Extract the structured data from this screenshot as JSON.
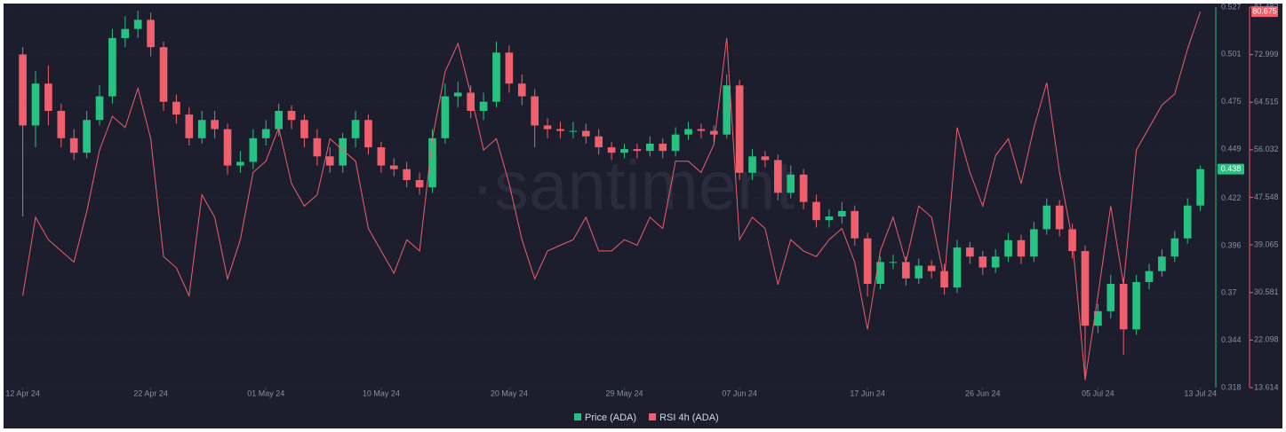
{
  "chart_data": {
    "type": "candlestick",
    "watermark": "·santiment",
    "x": [
      0,
      1,
      2,
      3,
      4,
      5,
      6,
      7,
      8,
      9,
      10,
      11,
      12,
      13,
      14,
      15,
      16,
      17,
      18,
      19,
      20,
      21,
      22,
      23,
      24,
      25,
      26,
      27,
      28,
      29,
      30,
      31,
      32,
      33,
      34,
      35,
      36,
      37,
      38,
      39,
      40,
      41,
      42,
      43,
      44,
      45,
      46,
      47,
      48,
      49,
      50,
      51,
      52,
      53,
      54,
      55,
      56,
      57,
      58,
      59,
      60,
      61,
      62,
      63,
      64,
      65,
      66,
      67,
      68,
      69,
      70,
      71,
      72,
      73,
      74,
      75,
      76,
      77,
      78,
      79,
      80,
      81,
      82,
      83,
      84,
      85,
      86,
      87,
      88,
      89,
      90,
      91,
      92
    ],
    "xlim": [
      -1.5,
      93
    ],
    "xticks": [
      {
        "value": 0,
        "label": "12 Apr 24"
      },
      {
        "value": 10,
        "label": "22 Apr 24"
      },
      {
        "value": 19,
        "label": "01 May 24"
      },
      {
        "value": 28,
        "label": "10 May 24"
      },
      {
        "value": 38,
        "label": "20 May 24"
      },
      {
        "value": 47,
        "label": "29 May 24"
      },
      {
        "value": 56,
        "label": "07 Jun 24"
      },
      {
        "value": 66,
        "label": "17 Jun 24"
      },
      {
        "value": 75,
        "label": "26 Jun 24"
      },
      {
        "value": 84,
        "label": "05 Jul 24"
      },
      {
        "value": 92,
        "label": "13 Jul 24"
      }
    ],
    "ylim": [
      0.318,
      0.527
    ],
    "yticks": [
      0.318,
      0.344,
      0.37,
      0.396,
      0.422,
      0.449,
      0.475,
      0.501,
      0.527
    ],
    "y2lim": [
      13.614,
      81.482
    ],
    "y2ticks": [
      13.614,
      22.098,
      30.581,
      39.065,
      47.548,
      56.032,
      64.515,
      72.999,
      81.482
    ],
    "grid": true,
    "series": [
      {
        "name": "Price (ADA)",
        "type": "candlestick",
        "color": "#26c281",
        "down_color": "#ef5f6c",
        "last_label": 0.438,
        "open": [
          0.501,
          0.462,
          0.485,
          0.47,
          0.455,
          0.447,
          0.465,
          0.478,
          0.51,
          0.515,
          0.52,
          0.505,
          0.475,
          0.468,
          0.455,
          0.465,
          0.46,
          0.44,
          0.442,
          0.455,
          0.46,
          0.47,
          0.465,
          0.455,
          0.445,
          0.44,
          0.455,
          0.465,
          0.45,
          0.44,
          0.438,
          0.432,
          0.428,
          0.455,
          0.478,
          0.48,
          0.47,
          0.475,
          0.502,
          0.485,
          0.478,
          0.462,
          0.46,
          0.459,
          0.459,
          0.456,
          0.45,
          0.447,
          0.449,
          0.448,
          0.452,
          0.448,
          0.457,
          0.46,
          0.459,
          0.457,
          0.484,
          0.436,
          0.445,
          0.443,
          0.425,
          0.435,
          0.42,
          0.41,
          0.412,
          0.415,
          0.4,
          0.375,
          0.387,
          0.387,
          0.378,
          0.385,
          0.382,
          0.373,
          0.395,
          0.39,
          0.384,
          0.39,
          0.399,
          0.39,
          0.405,
          0.418,
          0.405,
          0.393,
          0.352,
          0.36,
          0.375,
          0.35,
          0.376,
          0.382,
          0.39,
          0.4,
          0.418
        ],
        "high": [
          0.505,
          0.492,
          0.495,
          0.474,
          0.46,
          0.47,
          0.484,
          0.515,
          0.522,
          0.525,
          0.524,
          0.508,
          0.479,
          0.472,
          0.47,
          0.47,
          0.463,
          0.448,
          0.46,
          0.465,
          0.474,
          0.473,
          0.468,
          0.46,
          0.45,
          0.458,
          0.47,
          0.468,
          0.453,
          0.444,
          0.442,
          0.436,
          0.46,
          0.485,
          0.486,
          0.484,
          0.48,
          0.508,
          0.506,
          0.49,
          0.482,
          0.466,
          0.464,
          0.464,
          0.463,
          0.46,
          0.453,
          0.452,
          0.452,
          0.456,
          0.455,
          0.461,
          0.464,
          0.463,
          0.462,
          0.49,
          0.487,
          0.449,
          0.448,
          0.446,
          0.44,
          0.438,
          0.424,
          0.416,
          0.42,
          0.418,
          0.403,
          0.39,
          0.391,
          0.39,
          0.389,
          0.388,
          0.386,
          0.399,
          0.398,
          0.393,
          0.394,
          0.403,
          0.402,
          0.409,
          0.422,
          0.421,
          0.408,
          0.396,
          0.364,
          0.38,
          0.378,
          0.38,
          0.386,
          0.394,
          0.404,
          0.422,
          0.44
        ],
        "low": [
          0.412,
          0.45,
          0.462,
          0.45,
          0.443,
          0.444,
          0.462,
          0.474,
          0.505,
          0.51,
          0.5,
          0.47,
          0.463,
          0.451,
          0.452,
          0.455,
          0.435,
          0.436,
          0.438,
          0.451,
          0.456,
          0.46,
          0.45,
          0.44,
          0.436,
          0.436,
          0.45,
          0.446,
          0.436,
          0.434,
          0.428,
          0.424,
          0.425,
          0.452,
          0.472,
          0.466,
          0.465,
          0.472,
          0.48,
          0.473,
          0.45,
          0.455,
          0.455,
          0.455,
          0.452,
          0.446,
          0.443,
          0.444,
          0.444,
          0.445,
          0.444,
          0.445,
          0.454,
          0.455,
          0.453,
          0.455,
          0.432,
          0.432,
          0.439,
          0.421,
          0.422,
          0.416,
          0.406,
          0.406,
          0.408,
          0.396,
          0.368,
          0.372,
          0.383,
          0.374,
          0.375,
          0.378,
          0.369,
          0.37,
          0.386,
          0.38,
          0.381,
          0.387,
          0.386,
          0.387,
          0.402,
          0.401,
          0.389,
          0.322,
          0.348,
          0.356,
          0.336,
          0.347,
          0.372,
          0.379,
          0.387,
          0.397,
          0.415
        ],
        "close": [
          0.462,
          0.485,
          0.47,
          0.455,
          0.447,
          0.465,
          0.478,
          0.51,
          0.515,
          0.52,
          0.505,
          0.475,
          0.468,
          0.455,
          0.465,
          0.46,
          0.44,
          0.442,
          0.455,
          0.46,
          0.47,
          0.465,
          0.455,
          0.445,
          0.44,
          0.455,
          0.465,
          0.45,
          0.44,
          0.438,
          0.432,
          0.428,
          0.455,
          0.478,
          0.48,
          0.47,
          0.475,
          0.502,
          0.485,
          0.478,
          0.462,
          0.46,
          0.459,
          0.459,
          0.456,
          0.45,
          0.447,
          0.449,
          0.448,
          0.452,
          0.448,
          0.457,
          0.46,
          0.459,
          0.457,
          0.484,
          0.436,
          0.445,
          0.443,
          0.425,
          0.435,
          0.42,
          0.41,
          0.412,
          0.415,
          0.4,
          0.375,
          0.387,
          0.387,
          0.378,
          0.385,
          0.382,
          0.373,
          0.395,
          0.39,
          0.384,
          0.39,
          0.399,
          0.39,
          0.405,
          0.418,
          0.405,
          0.393,
          0.352,
          0.36,
          0.375,
          0.35,
          0.376,
          0.382,
          0.39,
          0.4,
          0.418,
          0.438
        ]
      },
      {
        "name": "RSI 4h (ADA)",
        "type": "line",
        "axis": "y2",
        "color": "#ef5f6c",
        "last_label": 80.675,
        "values": [
          30,
          44,
          40,
          38,
          36,
          45,
          56,
          62,
          60,
          67,
          58,
          37,
          35,
          30,
          48,
          44,
          33,
          40,
          52,
          54,
          60,
          50,
          46,
          48,
          58,
          56,
          54,
          42,
          38,
          34,
          40,
          38,
          58,
          70,
          75,
          66,
          56,
          58,
          50,
          40,
          33,
          38,
          39,
          40,
          44,
          38,
          38,
          40,
          39,
          44,
          42,
          54,
          54,
          52,
          57,
          76,
          40,
          44,
          42,
          32,
          40,
          38,
          37,
          40,
          42,
          36,
          24,
          38,
          44,
          36,
          46,
          44,
          33,
          60,
          52,
          46,
          55,
          58,
          50,
          60,
          68,
          52,
          40,
          15,
          30,
          46,
          32,
          56,
          60,
          64,
          66,
          74,
          80.675
        ]
      }
    ]
  }
}
